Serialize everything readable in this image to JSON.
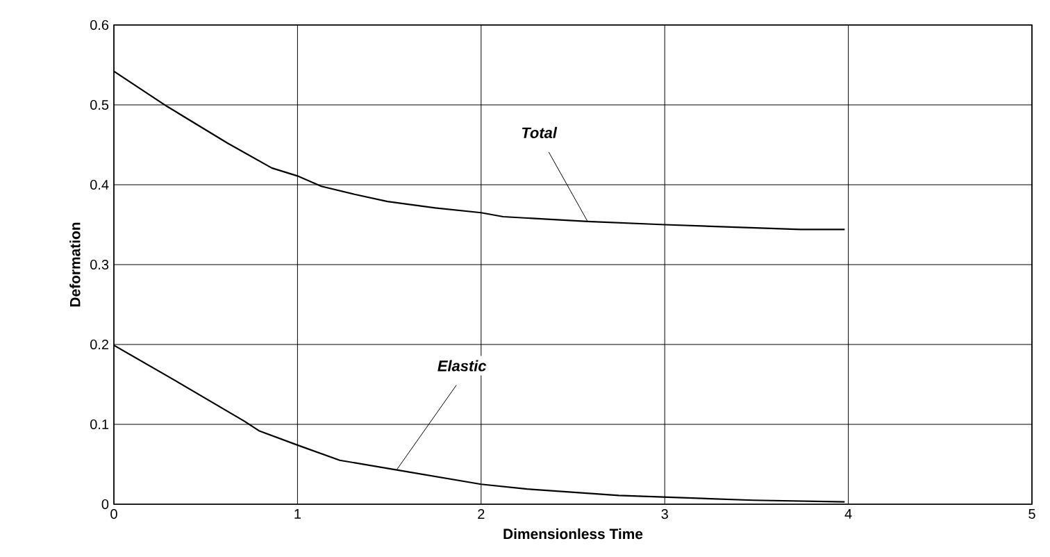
{
  "chart_data": {
    "type": "line",
    "xlabel": "Dimensionless Time",
    "ylabel": "Deformation",
    "xlim": [
      0,
      5
    ],
    "ylim": [
      0,
      0.6
    ],
    "xticks": [
      0,
      1,
      2,
      3,
      4,
      5
    ],
    "yticks": [
      0,
      0.1,
      0.2,
      0.3,
      0.4,
      0.5,
      0.6
    ],
    "grid": true,
    "marker": "none",
    "line_style": "solid",
    "series": [
      {
        "color": "#000000",
        "x": [
          0,
          0.29,
          0.62,
          0.86,
          1,
          1.13,
          1.31,
          1.49,
          1.75,
          2,
          2.12,
          2.58,
          3,
          3.74,
          3.98
        ],
        "values": [
          0.542,
          0.498,
          0.452,
          0.421,
          0.411,
          0.398,
          0.388,
          0.379,
          0.371,
          0.365,
          0.36,
          0.354,
          0.35,
          0.344,
          0.344
        ]
      },
      {
        "color": "#000000",
        "x": [
          0,
          0.34,
          0.71,
          0.79,
          1,
          1.23,
          1.54,
          2,
          2.25,
          2.75,
          3.48,
          3.98
        ],
        "values": [
          0.199,
          0.154,
          0.104,
          0.092,
          0.074,
          0.055,
          0.043,
          0.025,
          0.019,
          0.011,
          0.005,
          0.003
        ]
      }
    ],
    "annotations": [
      {
        "text": "Total",
        "x": 2.58,
        "y": 0.354
      },
      {
        "text": "Elastic",
        "x": 1.54,
        "y": 0.043
      }
    ]
  }
}
